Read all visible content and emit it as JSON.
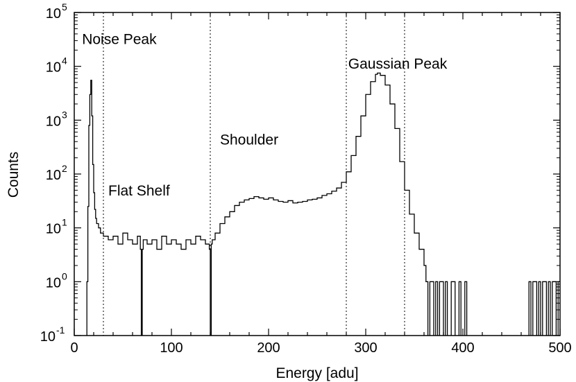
{
  "chart_data": {
    "type": "line",
    "style": "histogram-step",
    "title": "",
    "xlabel": "Energy [adu]",
    "ylabel": "Counts",
    "xlim": [
      0,
      500
    ],
    "ylim_log10": [
      -1.0,
      5.0
    ],
    "yscale": "log",
    "x_ticks": [
      0,
      100,
      200,
      300,
      400,
      500
    ],
    "y_ticks": [
      {
        "base": "10",
        "exp": "-1",
        "value": 0.1
      },
      {
        "base": "10",
        "exp": "0",
        "value": 1
      },
      {
        "base": "10",
        "exp": "1",
        "value": 10
      },
      {
        "base": "10",
        "exp": "2",
        "value": 100
      },
      {
        "base": "10",
        "exp": "3",
        "value": 1000
      },
      {
        "base": "10",
        "exp": "4",
        "value": 10000
      },
      {
        "base": "10",
        "exp": "5",
        "value": 100000
      }
    ],
    "region_boundaries": [
      30,
      140,
      280,
      340
    ],
    "annotations": [
      {
        "text": "Noise Peak",
        "x": 8,
        "y": 26000
      },
      {
        "text": "Flat Shelf",
        "x": 35,
        "y": 40
      },
      {
        "text": "Shoulder",
        "x": 150,
        "y": 350
      },
      {
        "text": "Gaussian Peak",
        "x": 282,
        "y": 9000
      }
    ],
    "series": [
      {
        "name": "Counts",
        "note": "representative samples read from the step histogram (bin width ~2 adu)",
        "x": [
          0,
          12,
          13,
          14,
          15,
          16,
          17,
          18,
          19,
          20,
          21,
          22,
          23,
          25,
          27,
          30,
          35,
          40,
          45,
          50,
          55,
          60,
          65,
          68,
          69,
          70,
          71,
          75,
          80,
          85,
          90,
          95,
          100,
          105,
          110,
          115,
          120,
          125,
          130,
          135,
          139,
          140,
          141,
          142,
          145,
          150,
          155,
          160,
          165,
          170,
          175,
          180,
          185,
          190,
          195,
          200,
          205,
          210,
          215,
          220,
          225,
          230,
          235,
          240,
          245,
          250,
          255,
          260,
          265,
          270,
          275,
          280,
          285,
          290,
          295,
          300,
          305,
          310,
          312,
          315,
          320,
          325,
          330,
          335,
          340,
          345,
          350,
          355,
          360,
          362,
          364,
          366,
          368,
          370,
          372,
          374,
          376,
          378,
          380,
          382,
          384,
          386,
          388,
          390,
          392,
          394,
          396,
          398,
          400,
          402,
          404,
          406,
          466,
          468,
          470,
          472,
          474,
          476,
          478,
          480,
          482,
          484,
          486,
          488,
          490,
          492,
          494,
          496,
          498,
          500
        ],
        "y": [
          0.05,
          0.05,
          1.0,
          25,
          800,
          3000,
          5500,
          1200,
          150,
          45,
          22,
          15,
          12,
          10,
          8,
          7,
          6,
          7,
          5,
          8,
          6,
          5,
          7,
          4,
          0.05,
          4,
          6,
          5,
          6,
          4,
          7,
          5,
          6,
          5,
          4,
          6,
          5,
          7,
          6,
          5,
          4,
          0.05,
          5,
          6,
          8,
          12,
          16,
          20,
          26,
          30,
          33,
          35,
          38,
          36,
          34,
          36,
          33,
          31,
          30,
          32,
          29,
          30,
          31,
          33,
          34,
          36,
          40,
          43,
          48,
          55,
          70,
          110,
          220,
          500,
          1200,
          3000,
          5200,
          7100,
          7500,
          6800,
          4500,
          2000,
          700,
          170,
          50,
          18,
          8,
          4,
          2,
          1,
          0.05,
          1,
          1,
          0.05,
          1,
          0.05,
          1,
          1,
          0.05,
          1,
          0.05,
          0.05,
          1,
          1,
          0.05,
          0.05,
          1,
          0.05,
          0.05,
          1,
          0.05,
          0.05,
          0.05,
          1,
          0.05,
          1,
          1,
          0.05,
          1,
          0.05,
          1,
          1,
          0.05,
          1,
          0.05,
          1,
          1,
          0.05,
          1,
          1
        ]
      }
    ],
    "line_color": "#000000",
    "background_color": "#ffffff"
  }
}
